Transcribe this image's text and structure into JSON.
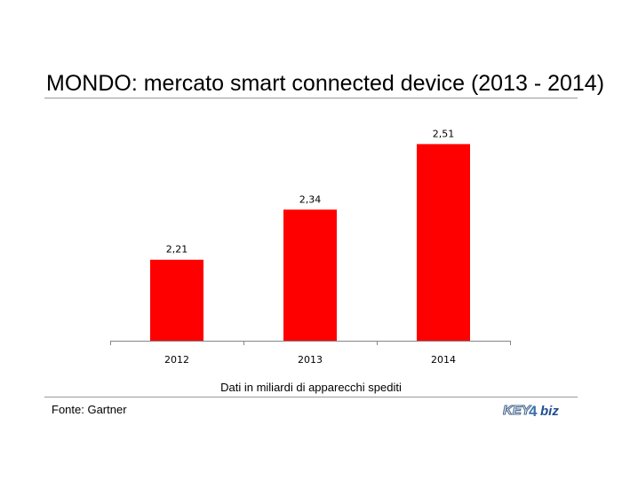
{
  "chart_data": {
    "type": "bar",
    "title": "MONDO: mercato smart connected device (2013 - 2014)",
    "categories": [
      "2012",
      "2013",
      "2014"
    ],
    "values": [
      2.21,
      2.34,
      2.51
    ],
    "value_labels": [
      "2,21",
      "2,34",
      "2,51"
    ],
    "baseline": 2.0,
    "ylim": [
      2.0,
      2.55
    ],
    "xlabel": "Dati in miliardi di apparecchi spediti",
    "ylabel": "",
    "grid": false,
    "legend": "none",
    "bar_color": "#ff0000"
  },
  "footer": {
    "source": "Fonte: Gartner",
    "logo_text": "KEY4biz"
  }
}
